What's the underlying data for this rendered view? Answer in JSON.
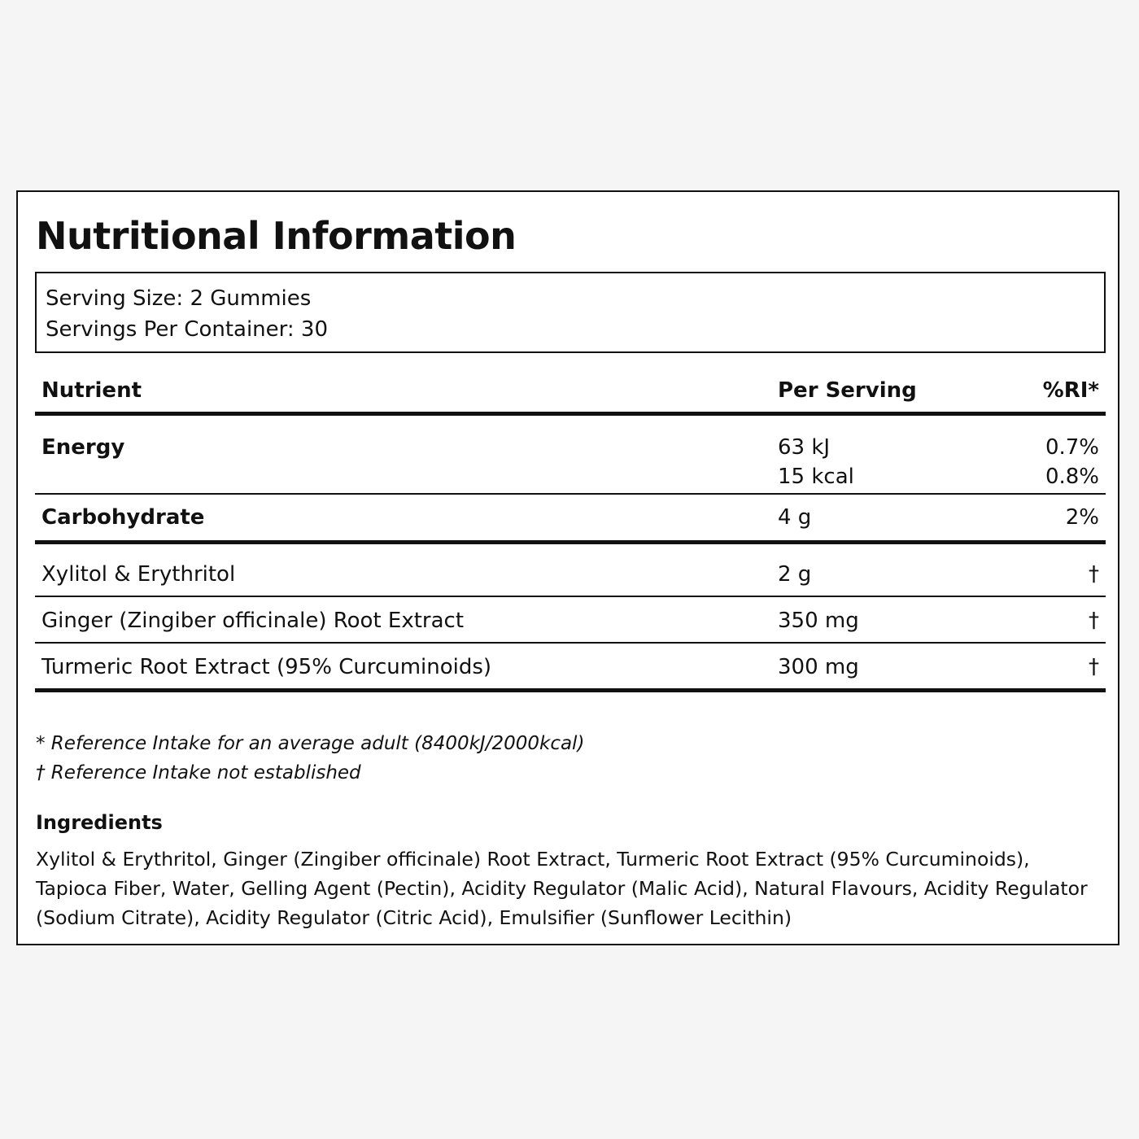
{
  "label": {
    "title": "Nutritional Information",
    "serving": {
      "size": "Serving Size: 2 Gummies",
      "per_container": "Servings Per Container: 30"
    },
    "table": {
      "headers": {
        "nutrient": "Nutrient",
        "per_serving": "Per Serving",
        "ri": "%RI*"
      },
      "energy": {
        "name": "Energy",
        "kj": "63 kJ",
        "kj_ri": "0.7%",
        "kcal": "15 kcal",
        "kcal_ri": "0.8%"
      },
      "carbohydrate": {
        "name": "Carbohydrate",
        "amount": "4 g",
        "ri": "2%"
      },
      "ingredients_rows": [
        {
          "name": "Xylitol & Erythritol",
          "amount": "2 g",
          "ri": "†"
        },
        {
          "name": "Ginger (Zingiber officinale) Root Extract",
          "amount": "350 mg",
          "ri": "†"
        },
        {
          "name": "Turmeric Root Extract (95% Curcuminoids)",
          "amount": "300 mg",
          "ri": "†"
        }
      ]
    },
    "footnotes": {
      "ri_note": "* Reference Intake for an average adult (8400kJ/2000kcal)",
      "dagger_note": "† Reference Intake not established"
    },
    "ingredients": {
      "heading": "Ingredients",
      "text": "Xylitol & Erythritol, Ginger (Zingiber officinale) Root Extract, Turmeric Root Extract (95% Curcuminoids), Tapioca Fiber, Water, Gelling Agent (Pectin), Acidity Regulator (Malic Acid), Natural Flavours, Acidity Regulator (Sodium Citrate), Acidity Regulator (Citric Acid), Emulsifier (Sunflower Lecithin)"
    }
  }
}
